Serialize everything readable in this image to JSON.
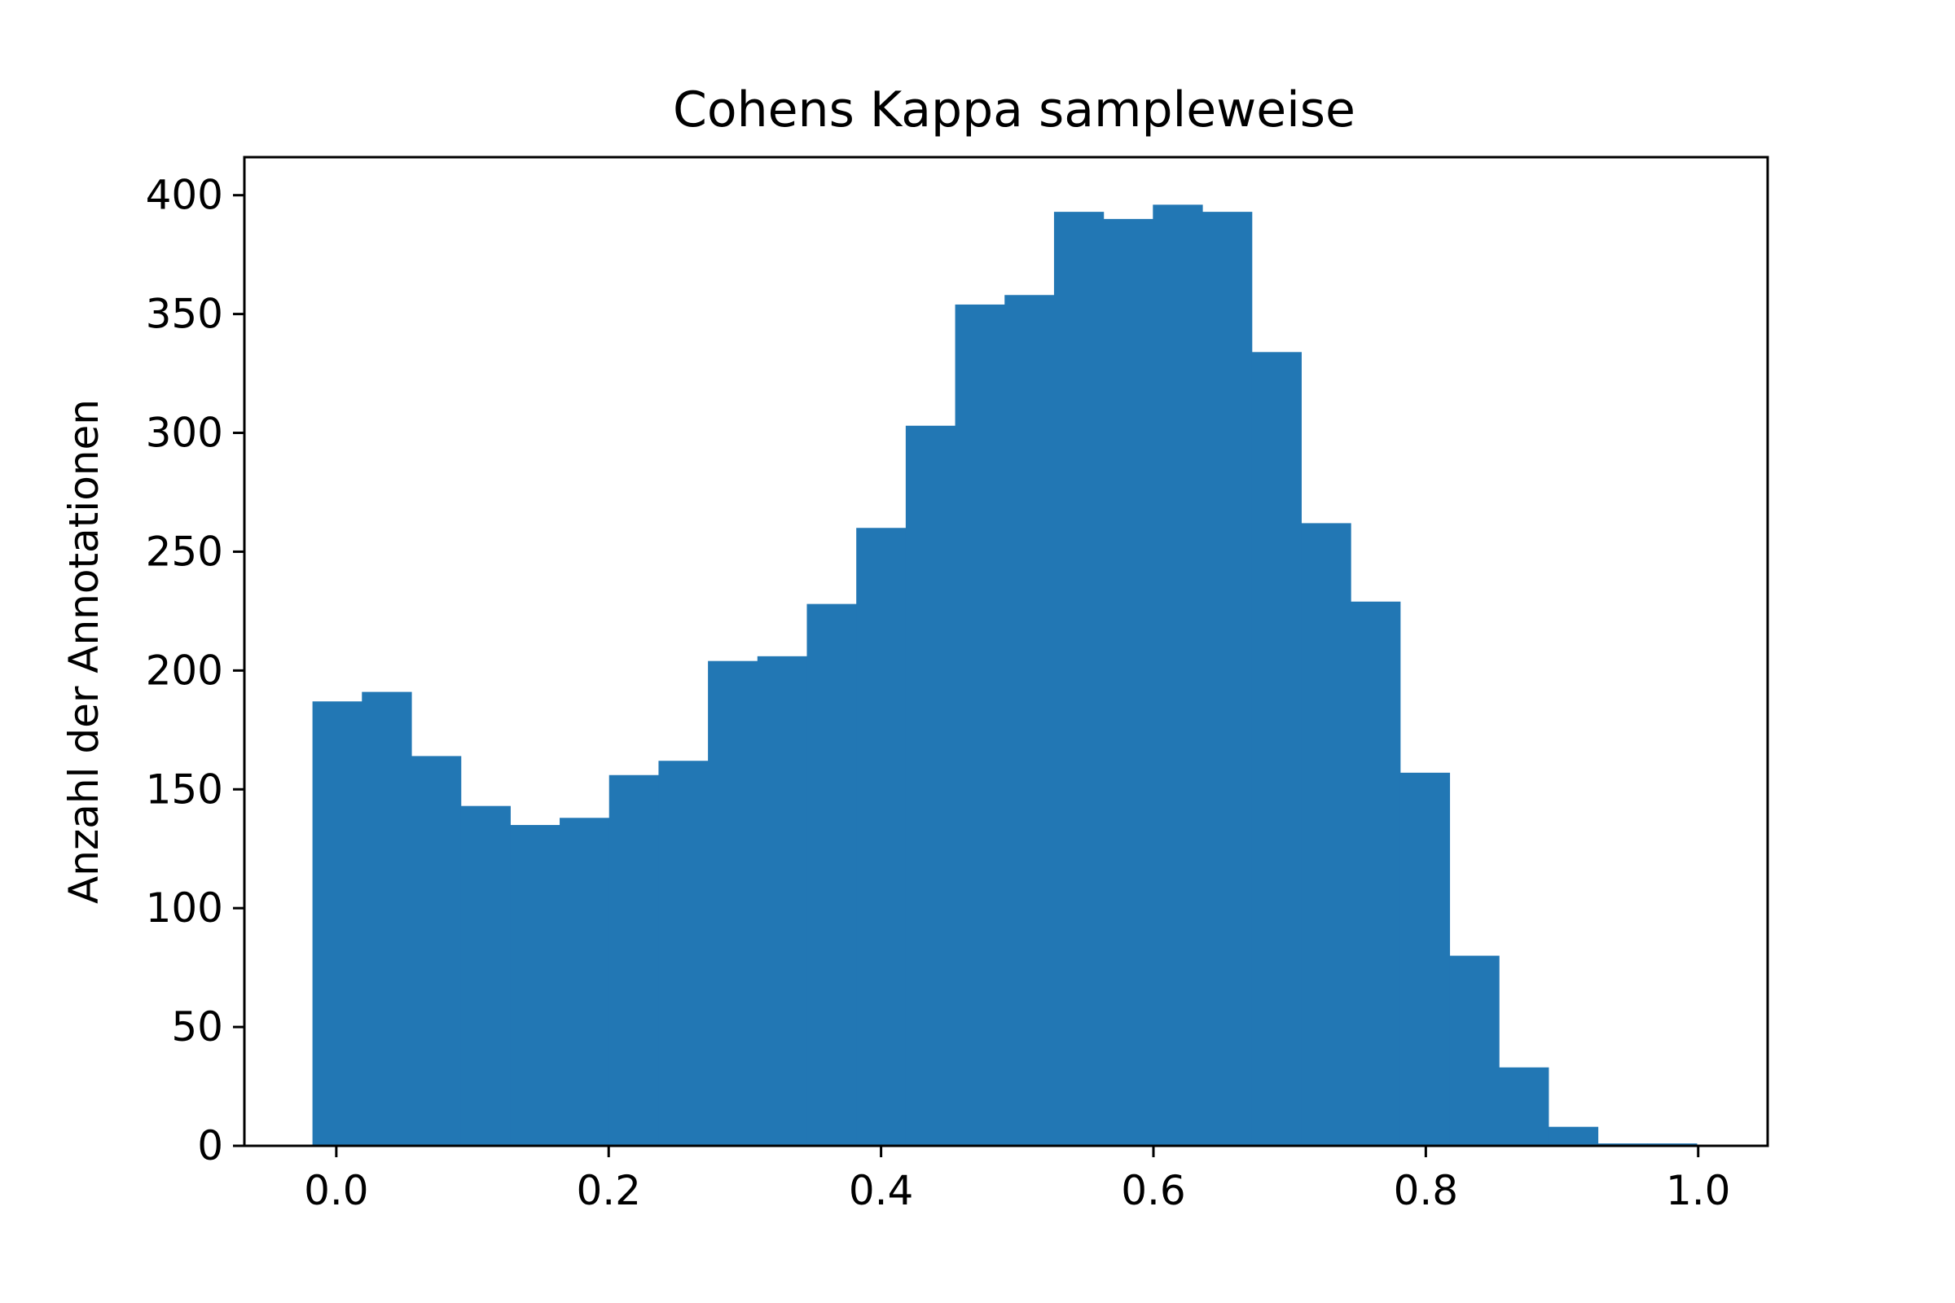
{
  "chart_data": {
    "type": "bar",
    "title": "Cohens Kappa sampleweise",
    "xlabel": "",
    "ylabel": "Anzahl der Annotationen",
    "bin_width": 0.0363,
    "bin_start": -0.0175,
    "values": [
      187,
      191,
      164,
      143,
      135,
      138,
      156,
      162,
      204,
      206,
      228,
      260,
      303,
      354,
      358,
      393,
      390,
      396,
      393,
      334,
      262,
      229,
      157,
      80,
      33,
      8,
      1,
      1
    ],
    "xlim": [
      -0.0675,
      1.051
    ],
    "ylim": [
      0,
      416
    ],
    "xticks": [
      0.0,
      0.2,
      0.4,
      0.6,
      0.8,
      1.0
    ],
    "xtick_labels": [
      "0.0",
      "0.2",
      "0.4",
      "0.6",
      "0.8",
      "1.0"
    ],
    "yticks": [
      0,
      50,
      100,
      150,
      200,
      250,
      300,
      350,
      400
    ],
    "ytick_labels": [
      "0",
      "50",
      "100",
      "150",
      "200",
      "250",
      "300",
      "350",
      "400"
    ],
    "bar_color": "#2277b4",
    "grid": false
  }
}
